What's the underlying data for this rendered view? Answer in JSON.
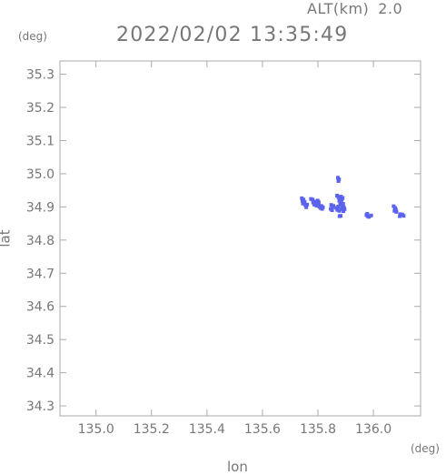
{
  "header": {
    "alt_label": "ALT(km)",
    "alt_value": "2.0",
    "timestamp": "2022/02/02 13:35:49"
  },
  "chart_data": {
    "type": "scatter",
    "title": "2022/02/02 13:35:49",
    "xlabel": "lon",
    "ylabel": "lat",
    "x_unit": "(deg)",
    "y_unit": "(deg)",
    "xlim": [
      134.87,
      136.17
    ],
    "ylim": [
      34.27,
      35.34
    ],
    "x_ticks": [
      135.0,
      135.2,
      135.4,
      135.6,
      135.8,
      136.0
    ],
    "x_tick_labels": [
      "135.0",
      "135.2",
      "135.4",
      "135.6",
      "135.8",
      "136.0"
    ],
    "y_ticks": [
      34.3,
      34.4,
      34.5,
      34.6,
      34.7,
      34.8,
      34.9,
      35.0,
      35.1,
      35.2,
      35.3
    ],
    "y_tick_labels": [
      "34.3",
      "34.4",
      "34.5",
      "34.6",
      "34.7",
      "34.8",
      "34.9",
      "35.0",
      "35.1",
      "35.2",
      "35.3"
    ],
    "grid": false,
    "marker_color": "#5b62ee",
    "points": [
      [
        135.742,
        34.926
      ],
      [
        135.744,
        34.918
      ],
      [
        135.748,
        34.922
      ],
      [
        135.752,
        34.915
      ],
      [
        135.746,
        34.91
      ],
      [
        135.755,
        34.905
      ],
      [
        135.758,
        34.899
      ],
      [
        135.761,
        34.907
      ],
      [
        135.775,
        34.924
      ],
      [
        135.781,
        34.922
      ],
      [
        135.783,
        34.913
      ],
      [
        135.789,
        34.916
      ],
      [
        135.794,
        34.911
      ],
      [
        135.787,
        34.907
      ],
      [
        135.795,
        34.904
      ],
      [
        135.801,
        34.908
      ],
      [
        135.805,
        34.901
      ],
      [
        135.809,
        34.897
      ],
      [
        135.812,
        34.903
      ],
      [
        135.799,
        34.919
      ],
      [
        135.803,
        34.914
      ],
      [
        135.815,
        34.894
      ],
      [
        135.818,
        34.899
      ],
      [
        135.848,
        34.906
      ],
      [
        135.852,
        34.899
      ],
      [
        135.856,
        34.903
      ],
      [
        135.846,
        34.894
      ],
      [
        135.851,
        34.89
      ],
      [
        135.872,
        34.988
      ],
      [
        135.876,
        34.983
      ],
      [
        135.874,
        34.978
      ],
      [
        135.869,
        34.934
      ],
      [
        135.874,
        34.929
      ],
      [
        135.879,
        34.925
      ],
      [
        135.883,
        34.931
      ],
      [
        135.886,
        34.922
      ],
      [
        135.889,
        34.927
      ],
      [
        135.877,
        34.918
      ],
      [
        135.884,
        34.915
      ],
      [
        135.891,
        34.909
      ],
      [
        135.887,
        34.904
      ],
      [
        135.894,
        34.898
      ],
      [
        135.88,
        34.907
      ],
      [
        135.873,
        34.901
      ],
      [
        135.866,
        34.897
      ],
      [
        135.87,
        34.891
      ],
      [
        135.877,
        34.888
      ],
      [
        135.884,
        34.893
      ],
      [
        135.892,
        34.887
      ],
      [
        135.896,
        34.893
      ],
      [
        135.878,
        34.872
      ],
      [
        135.882,
        34.873
      ],
      [
        135.975,
        34.876
      ],
      [
        135.979,
        34.872
      ],
      [
        135.984,
        34.87
      ],
      [
        135.992,
        34.874
      ],
      [
        135.978,
        34.879
      ],
      [
        136.073,
        34.902
      ],
      [
        136.078,
        34.897
      ],
      [
        136.081,
        34.892
      ],
      [
        136.076,
        34.888
      ],
      [
        136.083,
        34.885
      ],
      [
        136.097,
        34.878
      ],
      [
        136.104,
        34.877
      ],
      [
        136.109,
        34.873
      ],
      [
        136.095,
        34.872
      ]
    ]
  }
}
